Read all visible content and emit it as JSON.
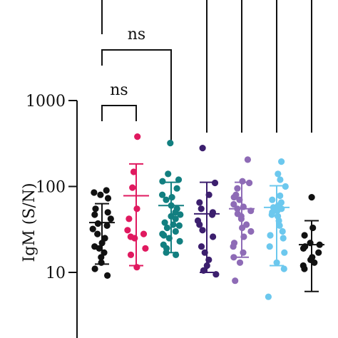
{
  "chart_data": {
    "type": "scatter",
    "title": "",
    "xlabel": "",
    "ylabel": "IgM (S/N)",
    "y_scale": "log",
    "ylim": [
      1.4,
      1400
    ],
    "yticks": [
      10,
      100,
      1000
    ],
    "ytick_labels": [
      "10",
      "100",
      "1000"
    ],
    "grid": false,
    "legend": "none",
    "groups": [
      {
        "color": "#111111",
        "mean": 38,
        "sd_low": 12.5,
        "sd_high": 63,
        "values": [
          90,
          85,
          80,
          73,
          55,
          50,
          47,
          42,
          37,
          35,
          32,
          28,
          25,
          22,
          20,
          19,
          17,
          15,
          13,
          11,
          9.2
        ]
      },
      {
        "color": "#e0195f",
        "mean": 78,
        "sd_low": 12,
        "sd_high": 183,
        "values": [
          380,
          148,
          97,
          55,
          42,
          31,
          28,
          26,
          25,
          19,
          16,
          11.5
        ]
      },
      {
        "color": "#127f80",
        "mean": 60,
        "sd_low": 17,
        "sd_high": 112,
        "values": [
          320,
          140,
          120,
          115,
          95,
          80,
          75,
          70,
          60,
          55,
          50,
          47,
          45,
          42,
          38,
          36,
          35,
          33,
          30,
          28,
          27,
          25,
          23,
          21,
          19,
          17,
          16
        ]
      },
      {
        "color": "#3c1f6e",
        "mean": 48,
        "sd_low": 10,
        "sd_high": 112,
        "values": [
          280,
          110,
          80,
          65,
          55,
          50,
          47,
          40,
          36,
          31,
          26,
          20,
          17,
          14,
          12,
          10.5,
          9.5
        ]
      },
      {
        "color": "#8e6bb6",
        "mean": 55,
        "sd_low": 15,
        "sd_high": 112,
        "values": [
          205,
          115,
          110,
          95,
          80,
          75,
          70,
          62,
          58,
          55,
          52,
          48,
          45,
          42,
          36,
          33,
          30,
          26,
          22,
          20,
          17,
          15,
          13,
          8
        ]
      },
      {
        "color": "#6cc8ee",
        "mean": 57,
        "sd_low": 12,
        "sd_high": 102,
        "values": [
          195,
          140,
          120,
          100,
          78,
          70,
          65,
          60,
          57,
          55,
          52,
          50,
          47,
          45,
          40,
          35,
          30,
          27,
          25,
          20,
          17,
          13,
          11,
          5.2
        ]
      },
      {
        "color": "#111111",
        "mean": 21,
        "sd_low": 6,
        "sd_high": 40,
        "values": [
          75,
          33,
          27,
          22,
          21,
          20,
          19,
          17,
          15,
          14,
          13,
          12,
          11
        ]
      }
    ],
    "annotations": [
      {
        "label": "ns",
        "from_group": 0,
        "to_group": 1
      },
      {
        "label": "ns",
        "from_group": 0,
        "to_group": 2
      }
    ]
  }
}
